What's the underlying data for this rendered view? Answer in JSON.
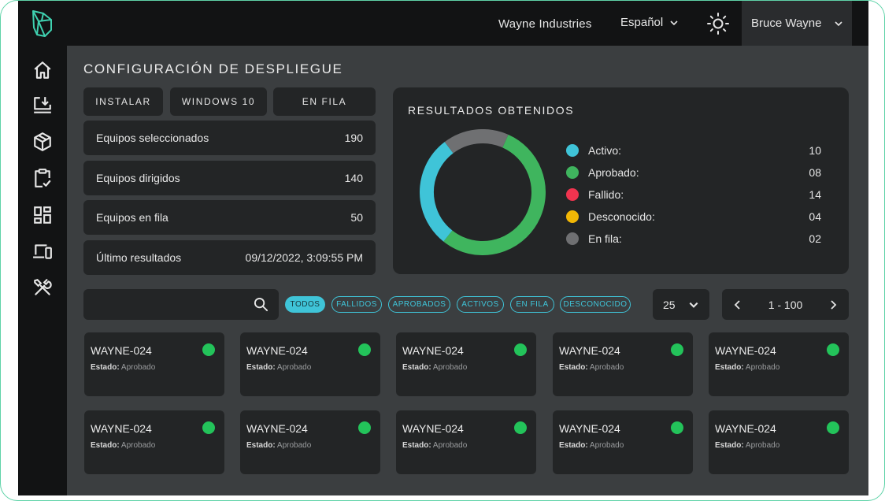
{
  "brand": "Wayne Industries",
  "language": "Español",
  "user": "Bruce Wayne",
  "page_title": "CONFIGURACIÓN DE DESPLIEGUE",
  "config_buttons": [
    "INSTALAR",
    "WINDOWS 10",
    "EN FILA"
  ],
  "stats": [
    {
      "label": "Equipos seleccionados",
      "value": "190"
    },
    {
      "label": "Equipos dirigidos",
      "value": "140"
    },
    {
      "label": "Equipos en fila",
      "value": "50"
    },
    {
      "label": "Último resultados",
      "value": "09/12/2022, 3:09:55 PM"
    }
  ],
  "results": {
    "title": "RESULTADOS OBTENIDOS",
    "legend": [
      {
        "label": "Activo:",
        "value": "10",
        "color": "#3fc4d8"
      },
      {
        "label": "Aprobado:",
        "value": "08",
        "color": "#3fb55e"
      },
      {
        "label": "Fallido:",
        "value": "14",
        "color": "#f0344f"
      },
      {
        "label": "Desconocido:",
        "value": "04",
        "color": "#f2b705"
      },
      {
        "label": "En fila:",
        "value": "02",
        "color": "#6f7072"
      }
    ],
    "donut_segments": [
      {
        "name": "Aprobado",
        "fraction": 0.54,
        "color": "#3fb55e"
      },
      {
        "name": "Activo",
        "fraction": 0.29,
        "color": "#3fc4d8"
      },
      {
        "name": "En fila",
        "fraction": 0.17,
        "color": "#6f7072"
      }
    ]
  },
  "search": {
    "placeholder": "",
    "value": ""
  },
  "filters": [
    "TODOS",
    "FALLIDOS",
    "APROBADOS",
    "ACTIVOS",
    "EN FILA",
    "DESCONOCIDO"
  ],
  "active_filter": "TODOS",
  "per_page": "25",
  "page_range": "1 - 100",
  "status_label": "Estado:",
  "devices": [
    {
      "name": "WAYNE-024",
      "status": "Aprobado",
      "color": "#23c35a"
    },
    {
      "name": "WAYNE-024",
      "status": "Aprobado",
      "color": "#23c35a"
    },
    {
      "name": "WAYNE-024",
      "status": "Aprobado",
      "color": "#23c35a"
    },
    {
      "name": "WAYNE-024",
      "status": "Aprobado",
      "color": "#23c35a"
    },
    {
      "name": "WAYNE-024",
      "status": "Aprobado",
      "color": "#23c35a"
    },
    {
      "name": "WAYNE-024",
      "status": "Aprobado",
      "color": "#23c35a"
    },
    {
      "name": "WAYNE-024",
      "status": "Aprobado",
      "color": "#23c35a"
    },
    {
      "name": "WAYNE-024",
      "status": "Aprobado",
      "color": "#23c35a"
    },
    {
      "name": "WAYNE-024",
      "status": "Aprobado",
      "color": "#23c35a"
    },
    {
      "name": "WAYNE-024",
      "status": "Aprobado",
      "color": "#23c35a"
    }
  ],
  "sidebar": {
    "icons": [
      "home-icon",
      "deploy-download-icon",
      "package-cube-icon",
      "clipboard-check-icon",
      "dashboard-grid-icon",
      "devices-icon",
      "tools-icon"
    ],
    "active": "deploy-download-icon"
  },
  "colors": {
    "accent": "#3fc4d8",
    "logo": "#3fd1b0",
    "status_ok": "#23c35a"
  }
}
